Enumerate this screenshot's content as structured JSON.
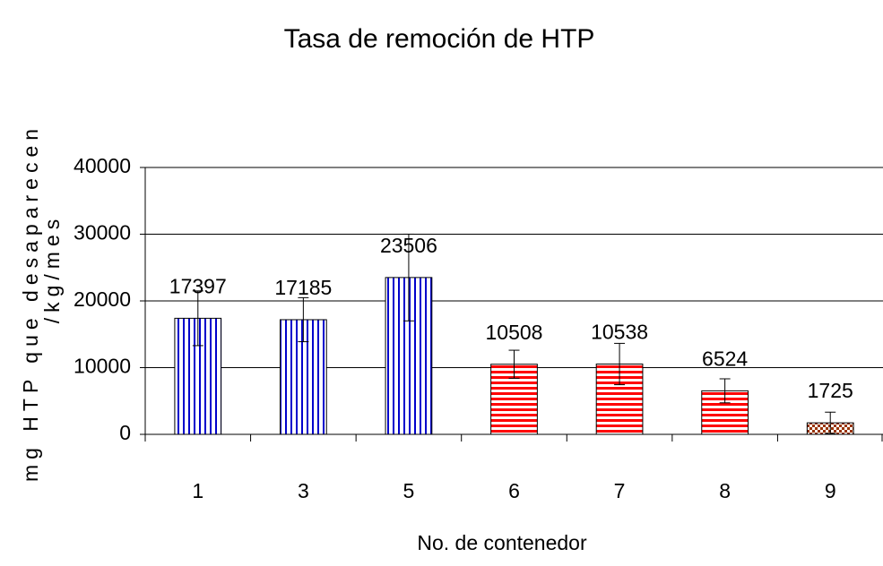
{
  "chart_data": {
    "type": "bar",
    "title": "Tasa de remoción de HTP",
    "xlabel": "No. de contenedor",
    "ylabel": [
      "mg HTP que desaparecen",
      "/kg/mes"
    ],
    "categories": [
      "1",
      "3",
      "5",
      "6",
      "7",
      "8",
      "9"
    ],
    "values": [
      17397,
      17185,
      23506,
      10508,
      10538,
      6524,
      1725
    ],
    "errors": [
      4100,
      3300,
      6500,
      2100,
      3100,
      1800,
      1600
    ],
    "colors": [
      "#0000cc",
      "#0000cc",
      "#0000cc",
      "#ff0000",
      "#ff0000",
      "#ff0000",
      "#993300"
    ],
    "patterns": [
      "vertical",
      "vertical",
      "vertical",
      "horizontal",
      "horizontal",
      "horizontal",
      "checker"
    ],
    "ylim": [
      0,
      40000
    ],
    "yticks": [
      0,
      10000,
      20000,
      30000,
      40000
    ],
    "grid": true
  }
}
